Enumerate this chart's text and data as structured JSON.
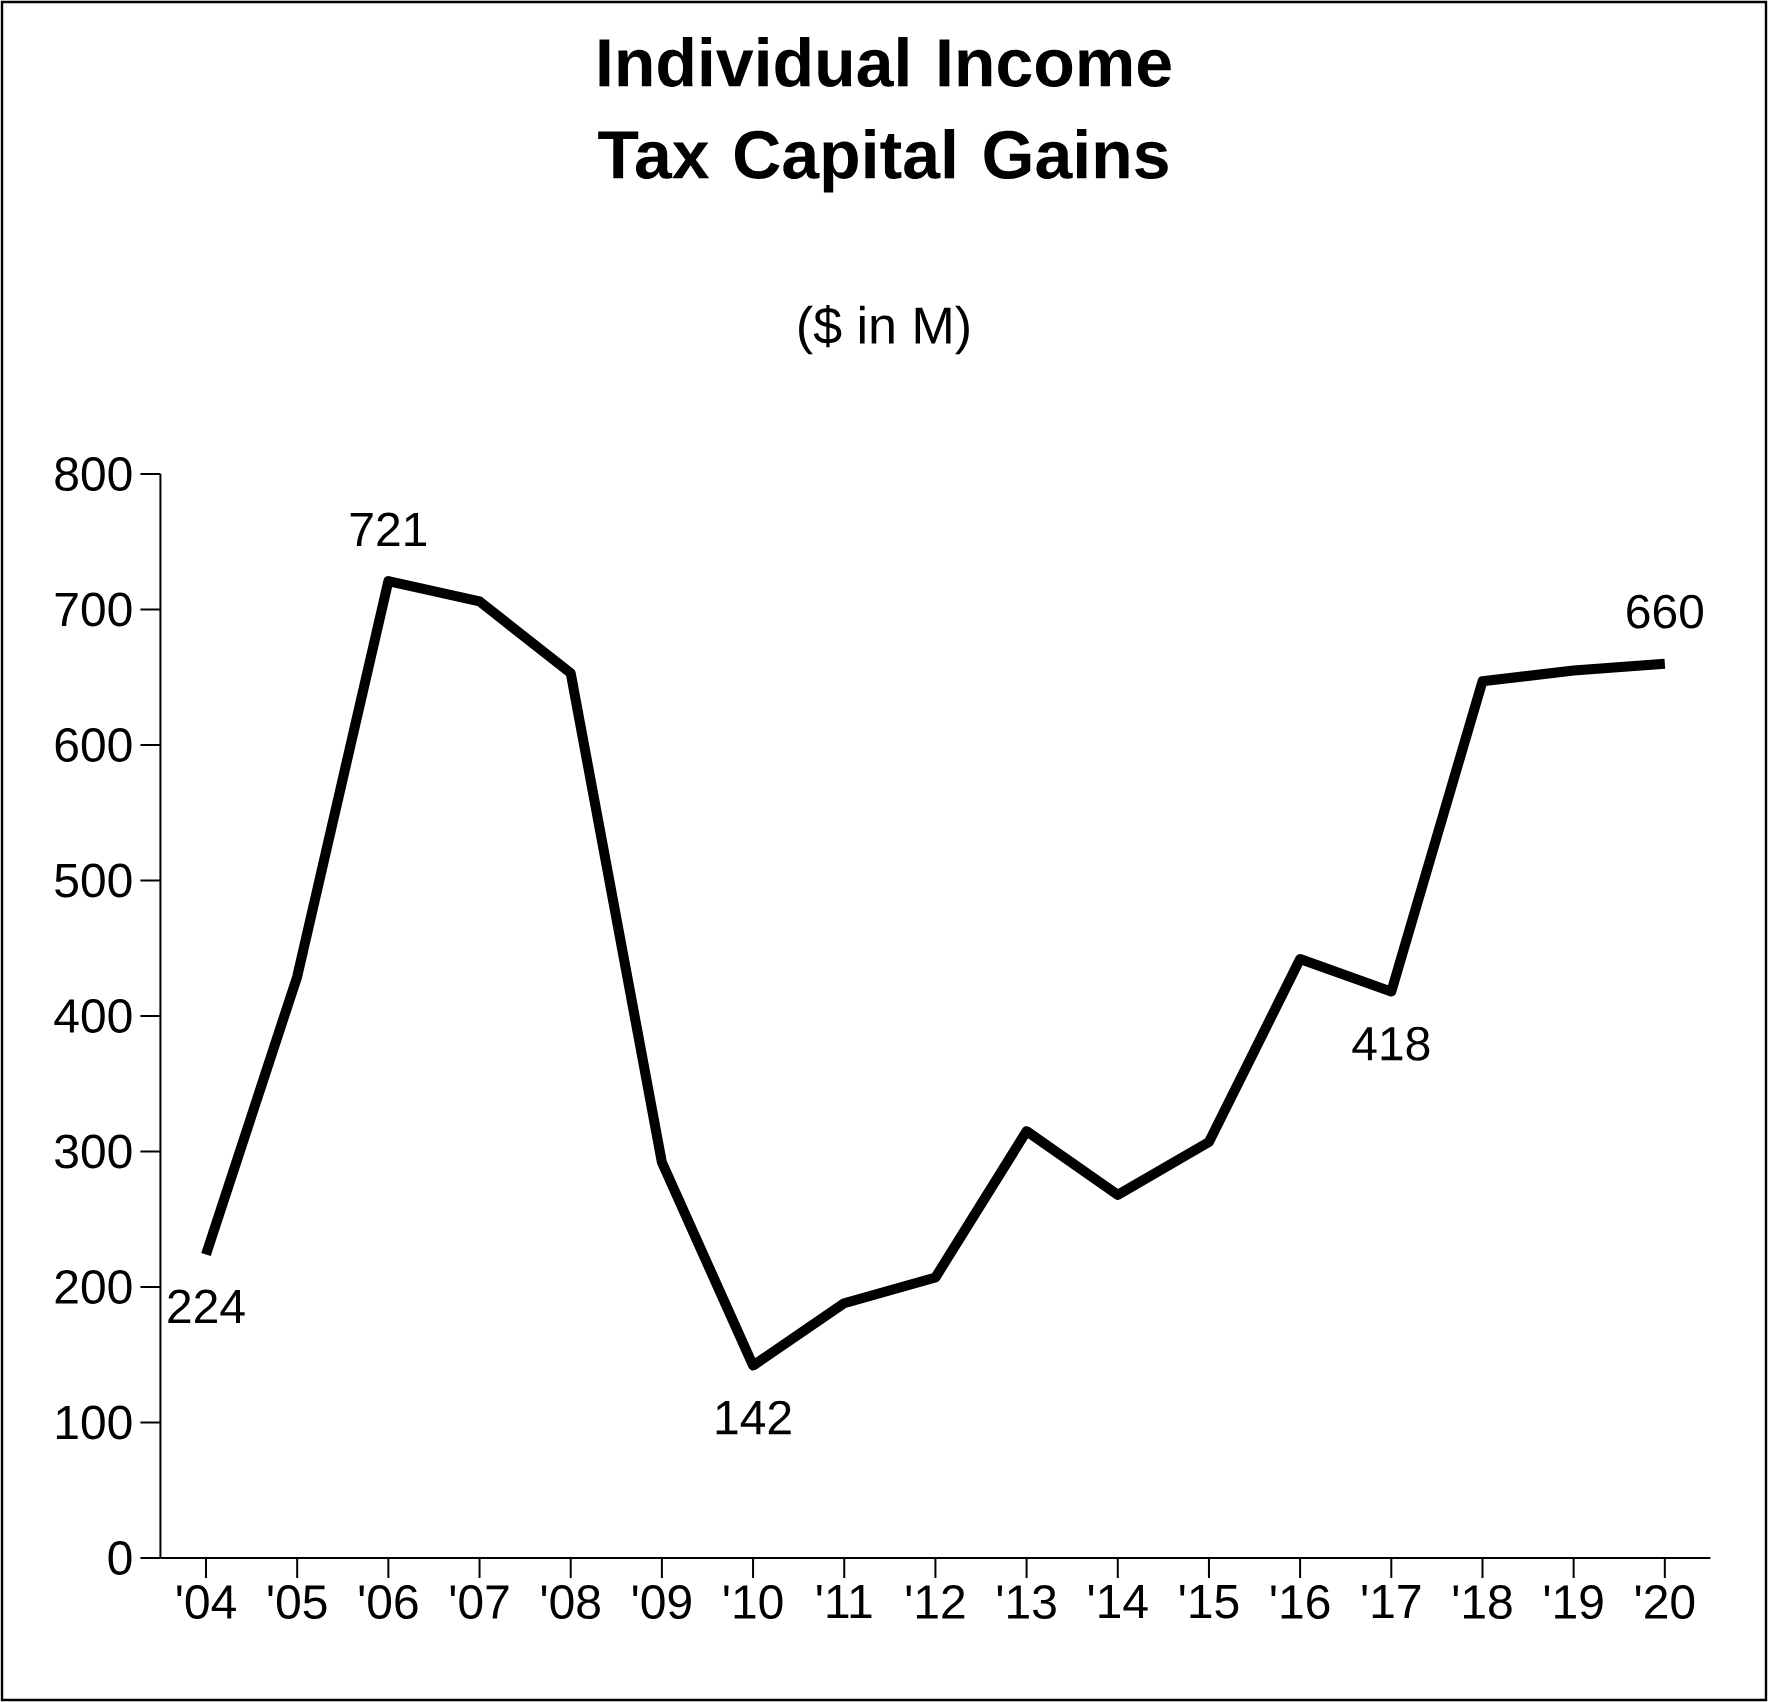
{
  "chart_data": {
    "type": "line",
    "title": "Individual Income Tax Capital Gains",
    "subtitle": "($ in M)",
    "categories": [
      "'04",
      "'05",
      "'06",
      "'07",
      "'08",
      "'09",
      "'10",
      "'11",
      "'12",
      "'13",
      "'14",
      "'15",
      "'16",
      "'17",
      "'18",
      "'19",
      "'20"
    ],
    "series": [
      {
        "color": "#000000",
        "values": [
          224,
          429,
          721,
          706,
          653,
          292,
          142,
          188,
          207,
          315,
          268,
          307,
          442,
          418,
          647,
          655,
          660
        ],
        "value_labels": [
          "224",
          null,
          "721",
          null,
          null,
          null,
          "142",
          null,
          null,
          null,
          null,
          null,
          null,
          "418",
          null,
          null,
          "660"
        ]
      }
    ],
    "ylim": [
      0,
      800
    ],
    "yticks": [
      0,
      100,
      200,
      300,
      400,
      500,
      600,
      700,
      800
    ],
    "line_style": "solid"
  }
}
